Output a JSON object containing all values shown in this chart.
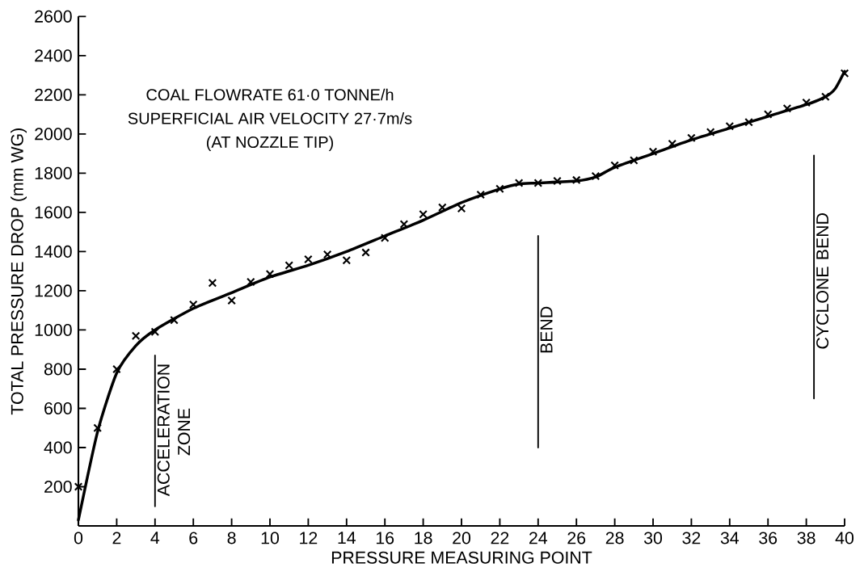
{
  "chart_data": {
    "type": "scatter",
    "xlabel": "PRESSURE MEASURING POINT",
    "ylabel": "TOTAL PRESSURE DROP (mm WG)",
    "xlim": [
      0,
      40
    ],
    "ylim": [
      0,
      2600
    ],
    "xticks": [
      0,
      2,
      4,
      6,
      8,
      10,
      12,
      14,
      16,
      18,
      20,
      22,
      24,
      26,
      28,
      30,
      32,
      34,
      36,
      38,
      40
    ],
    "yticks": [
      200,
      400,
      600,
      800,
      1000,
      1200,
      1400,
      1600,
      1800,
      2000,
      2200,
      2400,
      2600
    ],
    "grid": false,
    "legend": false,
    "series": [
      {
        "color": "#000000",
        "marker": "cross",
        "x": [
          0,
          1,
          2,
          3,
          4,
          5,
          6,
          7,
          8,
          9,
          10,
          11,
          12,
          13,
          14,
          15,
          16,
          17,
          18,
          19,
          20,
          21,
          22,
          23,
          24,
          25,
          26,
          27,
          28,
          29,
          30,
          31,
          32,
          33,
          34,
          35,
          36,
          37,
          38,
          39,
          40
        ],
        "values": [
          200,
          500,
          800,
          970,
          990,
          1050,
          1130,
          1240,
          1150,
          1245,
          1285,
          1330,
          1360,
          1385,
          1355,
          1395,
          1470,
          1540,
          1590,
          1625,
          1620,
          1690,
          1720,
          1750,
          1750,
          1760,
          1765,
          1785,
          1840,
          1865,
          1910,
          1950,
          1980,
          2010,
          2040,
          2060,
          2100,
          2130,
          2160,
          2190,
          2310
        ]
      },
      {
        "type": "line",
        "color": "#000000",
        "marker": "none",
        "line_style": "solid",
        "x": [
          0,
          1,
          2,
          3,
          4,
          6,
          8,
          10,
          12,
          14,
          16,
          18,
          20,
          22,
          23,
          24,
          26,
          27,
          28,
          30,
          32,
          34,
          36,
          38,
          39,
          39.5,
          40
        ],
        "values": [
          30,
          480,
          780,
          920,
          1000,
          1110,
          1190,
          1270,
          1330,
          1400,
          1480,
          1560,
          1650,
          1720,
          1745,
          1750,
          1760,
          1780,
          1830,
          1900,
          1970,
          2030,
          2090,
          2150,
          2190,
          2230,
          2320
        ]
      },
      {
        "type": "line",
        "color": "#000000",
        "marker": "none",
        "line_style": "solid",
        "x": [
          4,
          4
        ],
        "values": [
          100,
          870
        ]
      },
      {
        "type": "line",
        "color": "#000000",
        "marker": "none",
        "line_style": "solid",
        "x": [
          24,
          24
        ],
        "values": [
          400,
          1480
        ]
      },
      {
        "type": "line",
        "color": "#000000",
        "marker": "none",
        "line_style": "solid",
        "x": [
          38.4,
          38.4
        ],
        "values": [
          650,
          1890
        ]
      }
    ],
    "annotations": [
      "COAL FLOWRATE 61·0 TONNE/h",
      "SUPERFICIAL AIR VELOCITY 27·7m/s",
      "(AT NOZZLE TIP)",
      {
        "text": "ACCELERATION ZONE",
        "x": 4,
        "y": 480
      },
      {
        "text": "BEND",
        "x": 24,
        "y": 1000
      },
      {
        "text": "CYCLONE BEND",
        "x": 38.4,
        "y": 1250
      }
    ]
  }
}
